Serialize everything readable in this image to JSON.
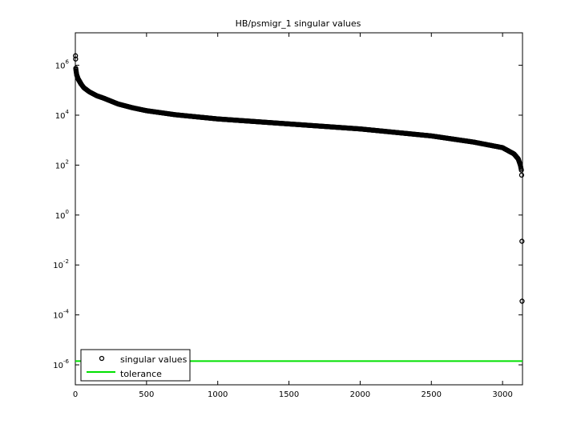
{
  "chart_data": {
    "type": "scatter",
    "title": "HB/psmigr_1 singular values",
    "xlabel": "",
    "ylabel": "",
    "xlim": [
      0,
      3140
    ],
    "ylim_log10": [
      -6.8,
      7.3
    ],
    "y_scale": "log",
    "grid": false,
    "legend_position": "bottom-left",
    "x_ticks": [
      "0",
      "500",
      "1000",
      "1500",
      "2000",
      "2500",
      "3000"
    ],
    "y_ticks": [
      {
        "base": "10",
        "exp": "6"
      },
      {
        "base": "10",
        "exp": "4"
      },
      {
        "base": "10",
        "exp": "2"
      },
      {
        "base": "10",
        "exp": "0"
      },
      {
        "base": "10",
        "exp": "-2"
      },
      {
        "base": "10",
        "exp": "-4"
      },
      {
        "base": "10",
        "exp": "-6"
      }
    ],
    "series": [
      {
        "name": "singular values",
        "marker": "circle-open",
        "color": "#000000",
        "n_points": 3140,
        "curve_log10": [
          [
            1,
            6.38
          ],
          [
            2,
            6.25
          ],
          [
            3,
            5.88
          ],
          [
            5,
            5.78
          ],
          [
            10,
            5.6
          ],
          [
            20,
            5.45
          ],
          [
            40,
            5.25
          ],
          [
            60,
            5.1
          ],
          [
            100,
            4.93
          ],
          [
            150,
            4.78
          ],
          [
            200,
            4.68
          ],
          [
            300,
            4.45
          ],
          [
            400,
            4.3
          ],
          [
            500,
            4.18
          ],
          [
            700,
            4.02
          ],
          [
            1000,
            3.85
          ],
          [
            1500,
            3.65
          ],
          [
            2000,
            3.45
          ],
          [
            2500,
            3.17
          ],
          [
            2800,
            2.92
          ],
          [
            3000,
            2.7
          ],
          [
            3080,
            2.45
          ],
          [
            3110,
            2.25
          ],
          [
            3125,
            2.0
          ],
          [
            3132,
            1.8
          ]
        ],
        "tail_points_log10": [
          [
            3134,
            1.6
          ],
          [
            3136,
            -1.05
          ],
          [
            3137,
            -3.45
          ]
        ]
      },
      {
        "name": "tolerance",
        "type": "line",
        "color": "#00e000",
        "value_log10": -5.85
      }
    ]
  }
}
